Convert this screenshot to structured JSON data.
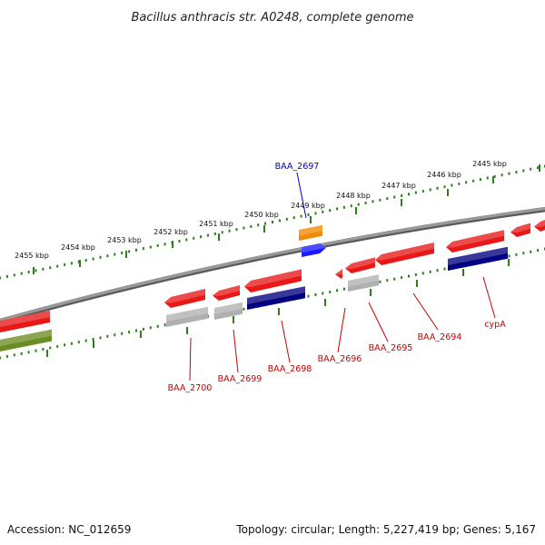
{
  "title": "Bacillus anthracis str. A0248, complete genome",
  "footer": {
    "accession": "Accession: NC_012659",
    "summary": "Topology: circular; Length: 5,227,419 bp; Genes: 5,167"
  },
  "colors": {
    "backbone": "#808080",
    "tick_track": "#2e7d1f",
    "label_red": "#cc0000",
    "label_blue": "#0000cc",
    "gene_red": "#e81818",
    "gene_gray": "#b0b0b0",
    "gene_navy": "#000080",
    "gene_orange": "#f08a00",
    "gene_blue": "#1a1aff",
    "gene_olive": "#6b8e23"
  },
  "kbp_labels": [
    "2455 kbp",
    "2454 kbp",
    "2453 kbp",
    "2452 kbp",
    "2451 kbp",
    "2450 kbp",
    "2449 kbp",
    "2448 kbp",
    "2447 kbp",
    "2446 kbp",
    "2445 kbp"
  ],
  "gene_labels": [
    {
      "id": "baa2697",
      "text": "BAA_2697",
      "color": "blue"
    },
    {
      "id": "baa2700",
      "text": "BAA_2700",
      "color": "red"
    },
    {
      "id": "baa2699",
      "text": "BAA_2699",
      "color": "red"
    },
    {
      "id": "baa2698",
      "text": "BAA_2698",
      "color": "red"
    },
    {
      "id": "baa2696",
      "text": "BAA_2696",
      "color": "red"
    },
    {
      "id": "baa2695",
      "text": "BAA_2695",
      "color": "red"
    },
    {
      "id": "baa2694",
      "text": "BAA_2694",
      "color": "red"
    },
    {
      "id": "cypa",
      "text": "cypA",
      "color": "red"
    }
  ]
}
